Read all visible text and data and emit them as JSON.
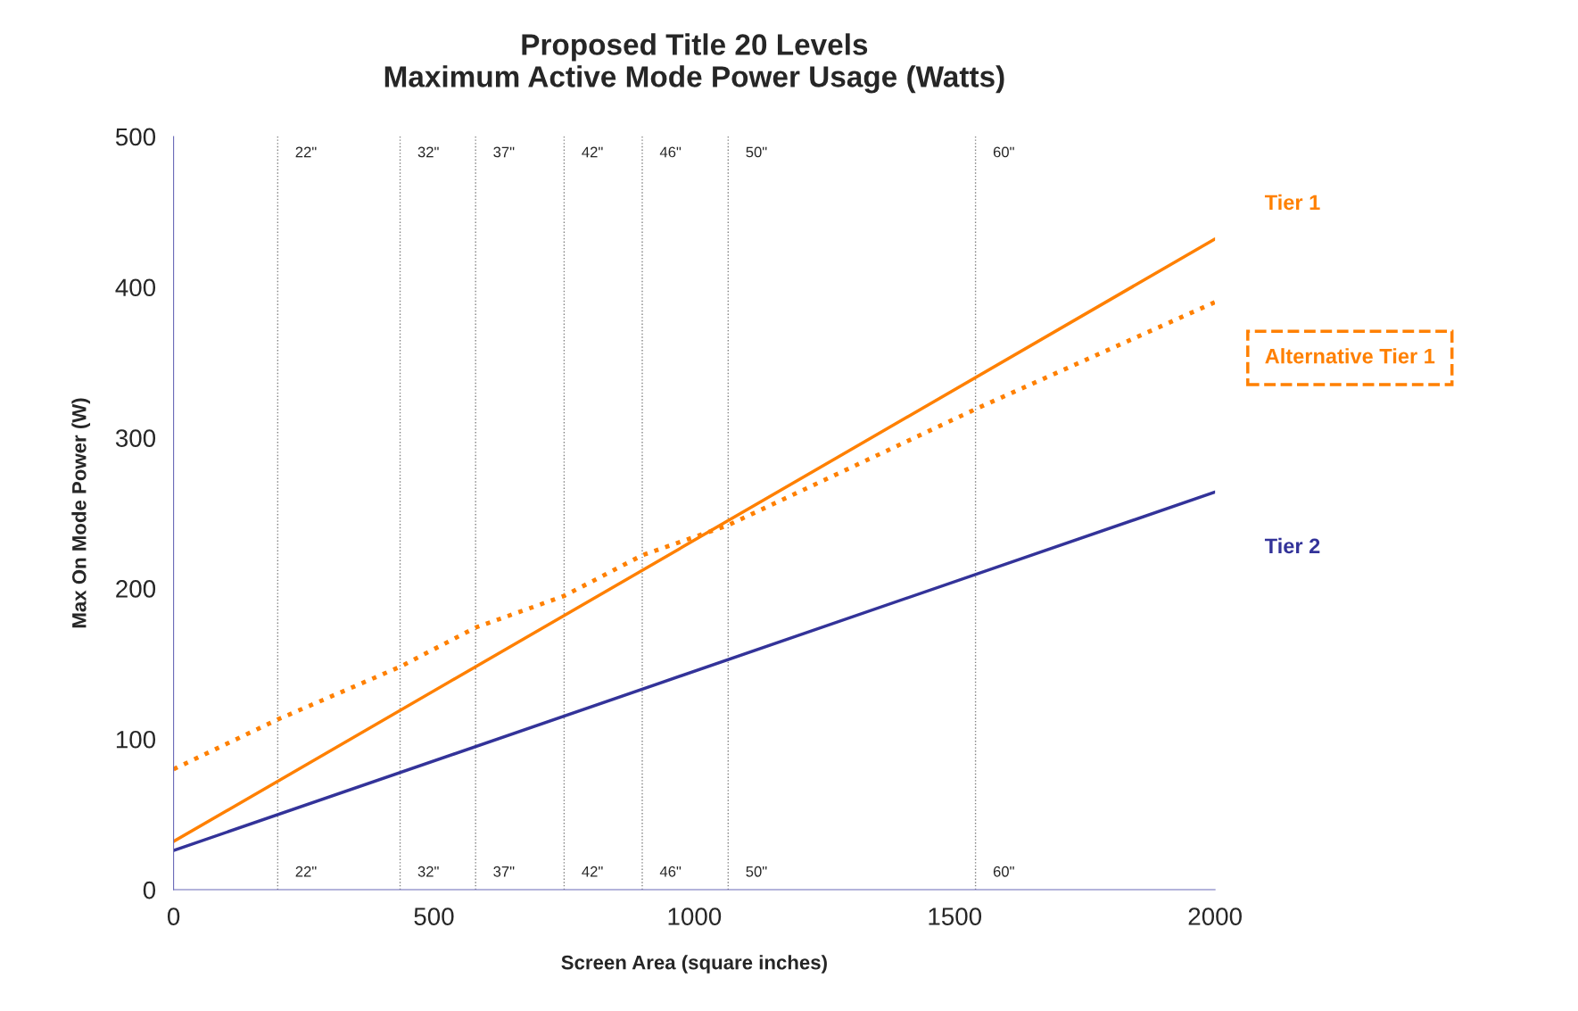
{
  "chart_data": {
    "type": "line",
    "title": "Proposed Title 20 Levels\nMaximum Active Mode Power Usage (Watts)",
    "xlabel": "Screen Area (square inches)",
    "ylabel": "Max On Mode Power (W)",
    "xlim": [
      0,
      2000
    ],
    "ylim": [
      0,
      500
    ],
    "xticks": [
      0,
      500,
      1000,
      1500,
      2000
    ],
    "yticks": [
      0,
      100,
      200,
      300,
      400,
      500
    ],
    "grid": false,
    "legend": false,
    "marker": "none",
    "series": [
      {
        "name": "Tier 1",
        "color": "#ff8000",
        "line_style": "solid",
        "x": [
          0,
          2000
        ],
        "values": [
          32,
          432
        ]
      },
      {
        "name": "Alternative Tier 1",
        "color": "#ff8000",
        "line_style": "dotted",
        "x": [
          0,
          200,
          435,
          580,
          750,
          900,
          1065,
          1540,
          2000
        ],
        "values": [
          80,
          113,
          148,
          174,
          195,
          222,
          242,
          319,
          390
        ]
      },
      {
        "name": "Tier 2",
        "color": "#333399",
        "line_style": "solid",
        "x": [
          0,
          2000
        ],
        "values": [
          26,
          264
        ]
      }
    ],
    "ref_lines": [
      {
        "axis": "x",
        "value": 200,
        "color": "#808080",
        "line_style": "dotted"
      },
      {
        "axis": "x",
        "value": 435,
        "color": "#808080",
        "line_style": "dotted"
      },
      {
        "axis": "x",
        "value": 580,
        "color": "#808080",
        "line_style": "dotted"
      },
      {
        "axis": "x",
        "value": 750,
        "color": "#808080",
        "line_style": "dotted"
      },
      {
        "axis": "x",
        "value": 900,
        "color": "#808080",
        "line_style": "dotted"
      },
      {
        "axis": "x",
        "value": 1065,
        "color": "#808080",
        "line_style": "dotted"
      },
      {
        "axis": "x",
        "value": 1540,
        "color": "#808080",
        "line_style": "dotted"
      }
    ],
    "annotations": [
      {
        "text": "22\"",
        "x": 200,
        "y": 500
      },
      {
        "text": "32\"",
        "x": 435,
        "y": 500
      },
      {
        "text": "37\"",
        "x": 580,
        "y": 500
      },
      {
        "text": "42\"",
        "x": 750,
        "y": 500
      },
      {
        "text": "46\"",
        "x": 900,
        "y": 500
      },
      {
        "text": "50\"",
        "x": 1065,
        "y": 500
      },
      {
        "text": "60\"",
        "x": 1540,
        "y": 500
      },
      {
        "text": "22\"",
        "x": 200,
        "y": 0
      },
      {
        "text": "32\"",
        "x": 435,
        "y": 0
      },
      {
        "text": "37\"",
        "x": 580,
        "y": 0
      },
      {
        "text": "42\"",
        "x": 750,
        "y": 0
      },
      {
        "text": "46\"",
        "x": 900,
        "y": 0
      },
      {
        "text": "50\"",
        "x": 1065,
        "y": 0
      },
      {
        "text": "60\"",
        "x": 1540,
        "y": 0
      }
    ]
  }
}
